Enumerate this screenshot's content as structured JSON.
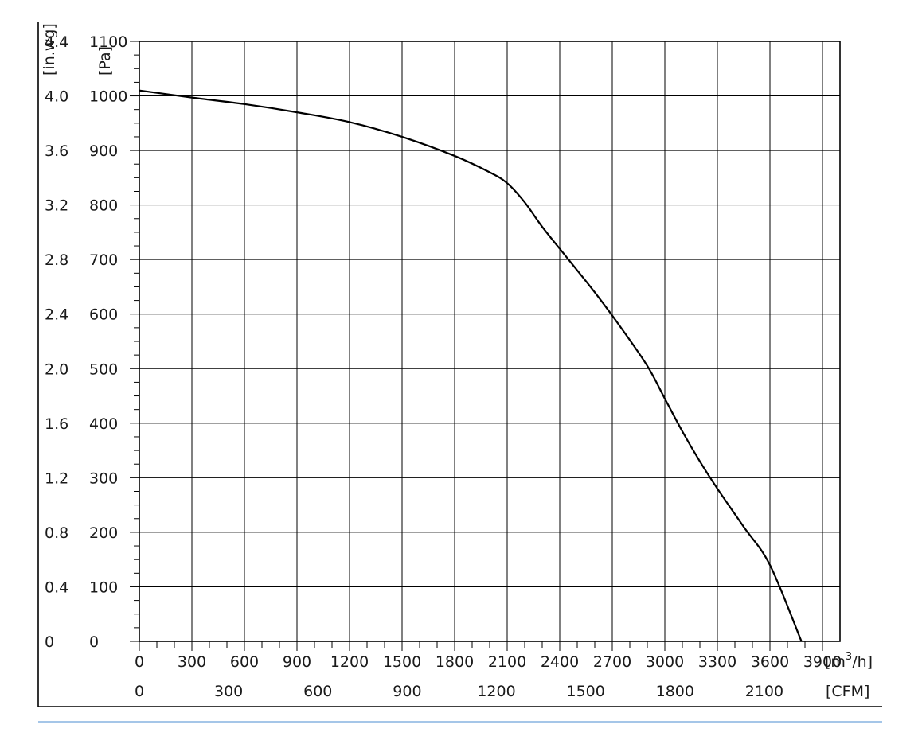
{
  "chart_data": {
    "type": "line",
    "x_axes": {
      "primary": {
        "unit_label_base": "[m",
        "unit_label_sup": "3",
        "unit_label_tail": "/h]",
        "range": [
          0,
          4000
        ],
        "ticks": [
          "0",
          "300",
          "600",
          "900",
          "1200",
          "1500",
          "1800",
          "2100",
          "2400",
          "2700",
          "3000",
          "3300",
          "3600",
          "3900"
        ],
        "tick_values": [
          0,
          300,
          600,
          900,
          1200,
          1500,
          1800,
          2100,
          2400,
          2700,
          3000,
          3300,
          3600,
          3900
        ]
      },
      "secondary": {
        "unit_label": "[CFM]",
        "ticks": [
          "0",
          "300",
          "600",
          "900",
          "1200",
          "1500",
          "1800",
          "2100"
        ],
        "tick_values": [
          0,
          300,
          600,
          900,
          1200,
          1500,
          1800,
          2100
        ]
      }
    },
    "y_axes": {
      "primary": {
        "unit_label": "[Pa]",
        "range": [
          0,
          1100
        ],
        "ticks": [
          "0",
          "100",
          "200",
          "300",
          "400",
          "500",
          "600",
          "700",
          "800",
          "900",
          "1000",
          "1100"
        ],
        "tick_values": [
          0,
          100,
          200,
          300,
          400,
          500,
          600,
          700,
          800,
          900,
          1000,
          1100
        ]
      },
      "secondary": {
        "unit_label": "[in.wg]",
        "ticks": [
          "0",
          "0.4",
          "0.8",
          "1.2",
          "1.6",
          "2.0",
          "2.4",
          "2.8",
          "3.2",
          "3.6",
          "4.0",
          "4.4"
        ]
      }
    },
    "grid": true,
    "series": [
      {
        "x": [
          0,
          300,
          600,
          900,
          1200,
          1500,
          1800,
          2000,
          2100,
          2200,
          2300,
          2450,
          2600,
          2750,
          2900,
          3000,
          3100,
          3200,
          3300,
          3450,
          3600,
          3780
        ],
        "y": [
          1010,
          997,
          985,
          970,
          952,
          925,
          890,
          860,
          840,
          805,
          760,
          700,
          640,
          575,
          505,
          445,
          385,
          330,
          280,
          210,
          140,
          0
        ]
      }
    ]
  }
}
